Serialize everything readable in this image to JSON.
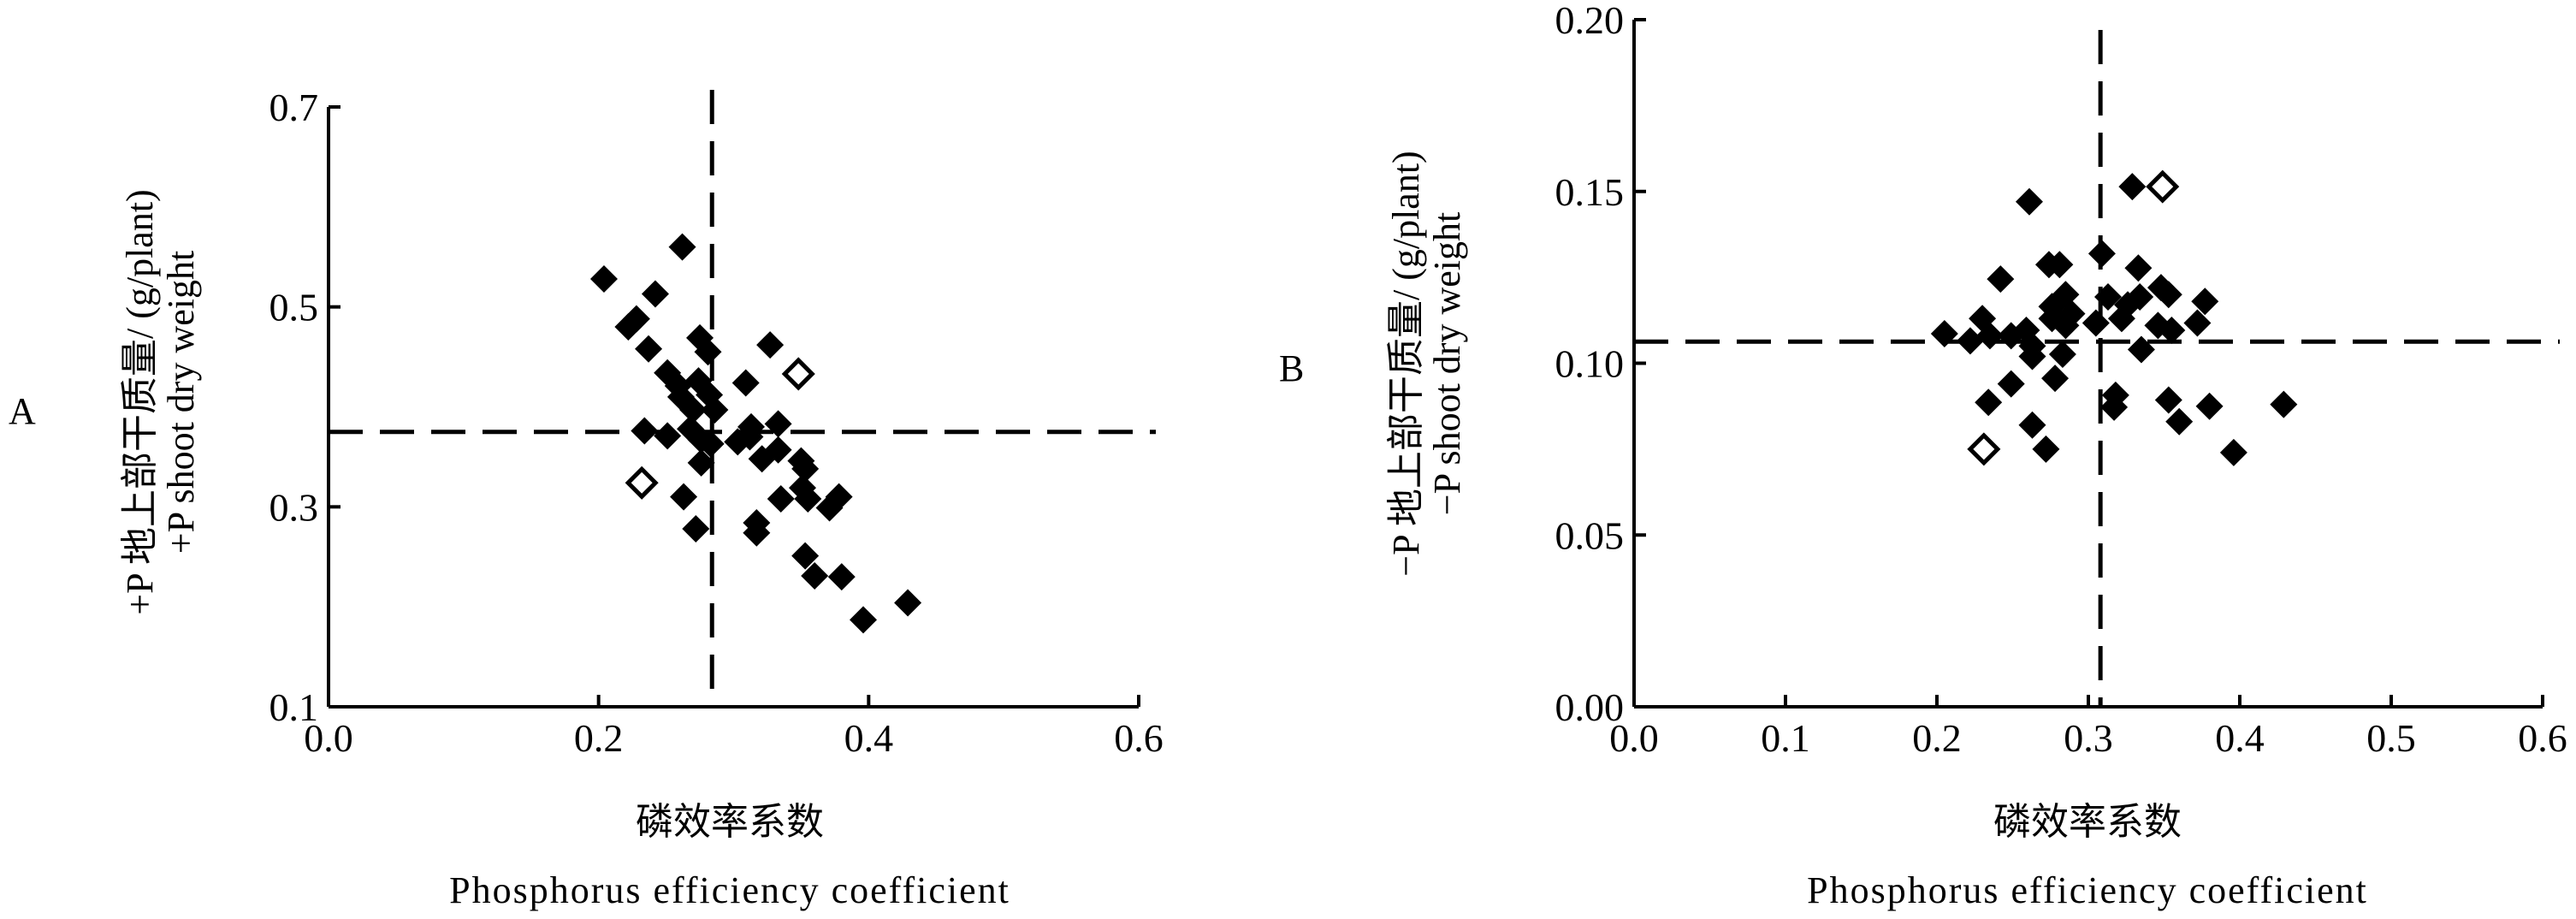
{
  "chart_data": [
    {
      "type": "scatter",
      "panel_label": "A",
      "xlabel_cn": "磷效率系数",
      "xlabel_en": "Phosphorus efficiency coefficient",
      "ylabel_cn": "+P 地上部干质量/ (g/plant)",
      "ylabel_en": "+P shoot dry weight",
      "xlim": [
        0,
        0.6
      ],
      "ylim": [
        0.1,
        0.7
      ],
      "xticks": [
        "0.0",
        "0.2",
        "0.4",
        "0.6"
      ],
      "yticks": [
        "0.1",
        "0.3",
        "0.5",
        "0.7"
      ],
      "ref_lines": {
        "x": 0.284,
        "y": 0.375
      },
      "grid": false,
      "marker": "diamond",
      "points": [
        [
          0.204,
          0.528
        ],
        [
          0.262,
          0.56
        ],
        [
          0.242,
          0.513
        ],
        [
          0.228,
          0.488
        ],
        [
          0.222,
          0.48
        ],
        [
          0.237,
          0.458
        ],
        [
          0.275,
          0.469
        ],
        [
          0.281,
          0.455
        ],
        [
          0.327,
          0.462
        ],
        [
          0.251,
          0.434
        ],
        [
          0.259,
          0.421
        ],
        [
          0.274,
          0.426
        ],
        [
          0.282,
          0.412
        ],
        [
          0.309,
          0.424
        ],
        [
          0.261,
          0.41
        ],
        [
          0.27,
          0.397
        ],
        [
          0.286,
          0.397
        ],
        [
          0.234,
          0.376
        ],
        [
          0.251,
          0.371
        ],
        [
          0.268,
          0.378
        ],
        [
          0.276,
          0.367
        ],
        [
          0.283,
          0.363
        ],
        [
          0.276,
          0.344
        ],
        [
          0.313,
          0.38
        ],
        [
          0.333,
          0.383
        ],
        [
          0.303,
          0.365
        ],
        [
          0.312,
          0.37
        ],
        [
          0.321,
          0.348
        ],
        [
          0.333,
          0.357
        ],
        [
          0.35,
          0.346
        ],
        [
          0.353,
          0.338
        ],
        [
          0.263,
          0.31
        ],
        [
          0.272,
          0.278
        ],
        [
          0.317,
          0.284
        ],
        [
          0.317,
          0.274
        ],
        [
          0.335,
          0.308
        ],
        [
          0.351,
          0.319
        ],
        [
          0.355,
          0.308
        ],
        [
          0.371,
          0.299
        ],
        [
          0.378,
          0.31
        ],
        [
          0.353,
          0.251
        ],
        [
          0.36,
          0.231
        ],
        [
          0.38,
          0.23
        ],
        [
          0.396,
          0.187
        ],
        [
          0.429,
          0.204
        ]
      ],
      "open_points": [
        [
          0.348,
          0.433
        ],
        [
          0.232,
          0.324
        ]
      ]
    },
    {
      "type": "scatter",
      "panel_label": "B",
      "xlabel_cn": "磷效率系数",
      "xlabel_en": "Phosphorus efficiency coefficient",
      "ylabel_cn": "−P 地上部干质量/ (g/plant)",
      "ylabel_en": "−P shoot dry weight",
      "xlim": [
        0,
        0.6
      ],
      "ylim": [
        0,
        0.2
      ],
      "xticks": [
        "0.0",
        "0.1",
        "0.2",
        "0.3",
        "0.4",
        "0.5",
        "0.6"
      ],
      "yticks": [
        "0.00",
        "0.05",
        "0.10",
        "0.15",
        "0.20"
      ],
      "ref_lines": {
        "x": 0.308,
        "y": 0.1063
      },
      "grid": false,
      "marker": "diamond",
      "points": [
        [
          0.205,
          0.1086
        ],
        [
          0.222,
          0.1065
        ],
        [
          0.23,
          0.113
        ],
        [
          0.235,
          0.108
        ],
        [
          0.242,
          0.1245
        ],
        [
          0.234,
          0.0886
        ],
        [
          0.249,
          0.108
        ],
        [
          0.259,
          0.1096
        ],
        [
          0.249,
          0.094
        ],
        [
          0.261,
          0.147
        ],
        [
          0.263,
          0.105
        ],
        [
          0.263,
          0.102
        ],
        [
          0.263,
          0.082
        ],
        [
          0.272,
          0.075
        ],
        [
          0.274,
          0.1287
        ],
        [
          0.281,
          0.1287
        ],
        [
          0.276,
          0.1165
        ],
        [
          0.276,
          0.113
        ],
        [
          0.283,
          0.1026
        ],
        [
          0.285,
          0.12
        ],
        [
          0.285,
          0.111
        ],
        [
          0.278,
          0.0956
        ],
        [
          0.289,
          0.1144
        ],
        [
          0.309,
          0.1319
        ],
        [
          0.305,
          0.1117
        ],
        [
          0.313,
          0.1193
        ],
        [
          0.322,
          0.113
        ],
        [
          0.326,
          0.117
        ],
        [
          0.334,
          0.1193
        ],
        [
          0.333,
          0.1277
        ],
        [
          0.329,
          0.1514
        ],
        [
          0.335,
          0.104
        ],
        [
          0.318,
          0.0907
        ],
        [
          0.317,
          0.0872
        ],
        [
          0.348,
          0.122
        ],
        [
          0.353,
          0.12
        ],
        [
          0.346,
          0.111
        ],
        [
          0.355,
          0.1096
        ],
        [
          0.372,
          0.1117
        ],
        [
          0.377,
          0.118
        ],
        [
          0.353,
          0.0893
        ],
        [
          0.36,
          0.083
        ],
        [
          0.38,
          0.0875
        ],
        [
          0.429,
          0.088
        ],
        [
          0.396,
          0.074
        ]
      ],
      "open_points": [
        [
          0.349,
          0.1514
        ],
        [
          0.231,
          0.075
        ]
      ]
    }
  ]
}
